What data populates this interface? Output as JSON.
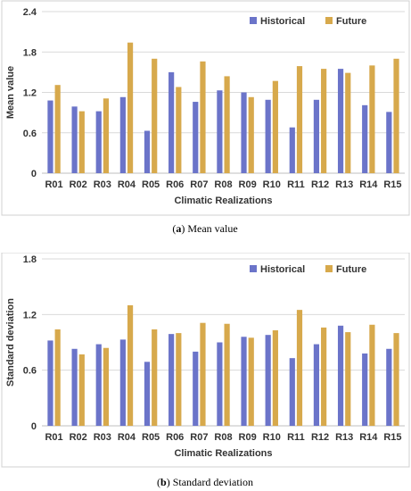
{
  "colors": {
    "historical": "#6B74C9",
    "future": "#D7A94C",
    "grid": "#D9D9D9",
    "axis": "#BFBFBF"
  },
  "chart_data": [
    {
      "type": "bar",
      "panel": "a",
      "caption_label": "a",
      "caption_text": "Mean value",
      "xlabel": "Climatic Realizations",
      "ylabel": "Mean value",
      "ylim": [
        0,
        2.4
      ],
      "yticks": [
        "0",
        "0.6",
        "1.2",
        "1.8",
        "2.4"
      ],
      "legend_position": "top-right",
      "grid": true,
      "categories": [
        "R01",
        "R02",
        "R03",
        "R04",
        "R05",
        "R06",
        "R07",
        "R08",
        "R09",
        "R10",
        "R11",
        "R12",
        "R13",
        "R14",
        "R15"
      ],
      "series": [
        {
          "name": "Historical",
          "values": [
            1.08,
            0.99,
            0.92,
            1.13,
            0.63,
            1.5,
            1.06,
            1.23,
            1.2,
            1.09,
            0.68,
            1.09,
            1.55,
            1.01,
            0.91
          ]
        },
        {
          "name": "Future",
          "values": [
            1.31,
            0.92,
            1.11,
            1.94,
            1.7,
            1.28,
            1.66,
            1.44,
            1.13,
            1.37,
            1.59,
            1.55,
            1.49,
            1.6,
            1.7
          ]
        }
      ]
    },
    {
      "type": "bar",
      "panel": "b",
      "caption_label": "b",
      "caption_text": "Standard deviation",
      "xlabel": "Climatic Realizations",
      "ylabel": "Standard deviation",
      "ylim": [
        0,
        1.8
      ],
      "yticks": [
        "0",
        "0.6",
        "1.2",
        "1.8"
      ],
      "legend_position": "top-right",
      "grid": true,
      "categories": [
        "R01",
        "R02",
        "R03",
        "R04",
        "R05",
        "R06",
        "R07",
        "R08",
        "R09",
        "R10",
        "R11",
        "R12",
        "R13",
        "R14",
        "R15"
      ],
      "series": [
        {
          "name": "Historical",
          "values": [
            0.92,
            0.83,
            0.88,
            0.93,
            0.69,
            0.99,
            0.8,
            0.9,
            0.96,
            0.98,
            0.73,
            0.88,
            1.08,
            0.78,
            0.83
          ]
        },
        {
          "name": "Future",
          "values": [
            1.04,
            0.77,
            0.84,
            1.3,
            1.04,
            1.0,
            1.11,
            1.1,
            0.95,
            1.03,
            1.25,
            1.06,
            1.01,
            1.09,
            1.0
          ]
        }
      ]
    }
  ]
}
